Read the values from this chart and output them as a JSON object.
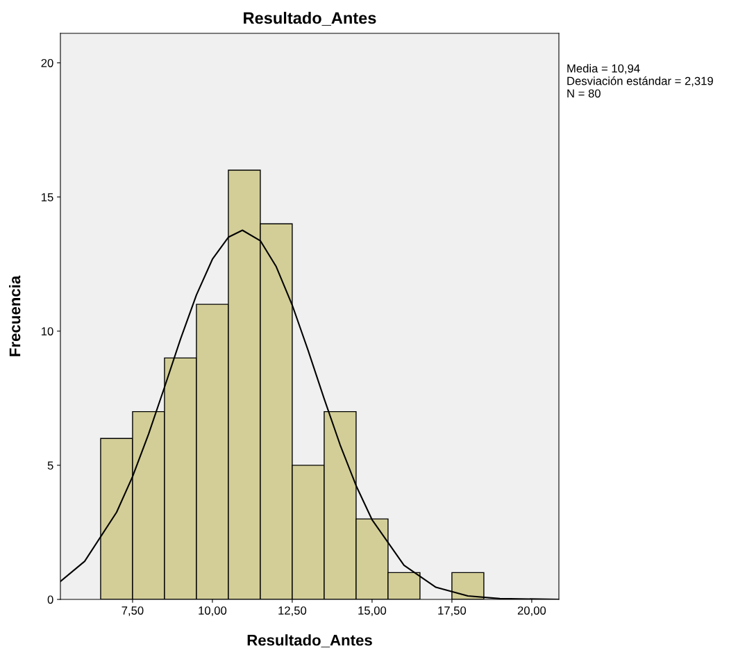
{
  "chart_data": {
    "type": "histogram",
    "title": "Resultado_Antes",
    "xlabel": "Resultado_Antes",
    "ylabel": "Frecuencia",
    "bins": [
      6.5,
      7.5,
      8.5,
      9.5,
      10.5,
      11.5,
      12.5,
      13.5,
      14.5,
      15.5,
      16.5,
      17.5,
      18.5
    ],
    "values": [
      6,
      7,
      9,
      11,
      16,
      14,
      5,
      7,
      3,
      1,
      0,
      1
    ],
    "color": "#d3ce97",
    "series": [
      {
        "type": "line",
        "color": "#000000",
        "x": [
          5.24,
          6,
          7,
          7.5,
          8,
          8.5,
          9,
          9.5,
          10,
          10.5,
          10.94,
          11.5,
          12,
          12.5,
          13,
          13.5,
          14,
          14.5,
          15,
          16,
          17,
          18,
          19,
          20.85
        ],
        "values": [
          0.67,
          1.42,
          3.25,
          4.58,
          6.16,
          7.91,
          9.7,
          11.35,
          12.68,
          13.5,
          13.76,
          13.37,
          12.4,
          10.97,
          9.27,
          7.48,
          5.76,
          4.24,
          2.97,
          1.27,
          0.45,
          0.13,
          0.03,
          0.0
        ]
      }
    ],
    "xlim": [
      5.24,
      20.85
    ],
    "ylim": [
      0,
      21.1
    ],
    "xticks": [
      {
        "value": 7.5,
        "label": "7,50"
      },
      {
        "value": 10,
        "label": "10,00"
      },
      {
        "value": 12.5,
        "label": "12,50"
      },
      {
        "value": 15,
        "label": "15,00"
      },
      {
        "value": 17.5,
        "label": "17,50"
      },
      {
        "value": 20,
        "label": "20,00"
      }
    ],
    "yticks": [
      0,
      5,
      10,
      15,
      20
    ],
    "grid": false,
    "annotations": [
      "Media = 10,94",
      "Desviación estándar = 2,319",
      "N = 80"
    ]
  }
}
